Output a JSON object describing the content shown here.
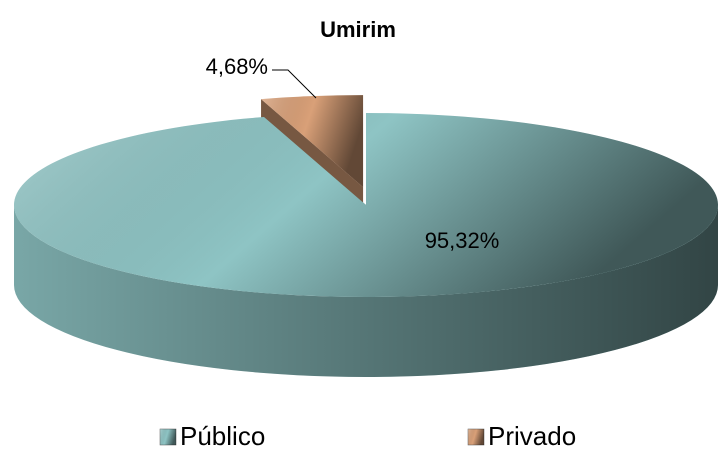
{
  "chart_data": {
    "type": "pie",
    "title": "Umirim",
    "categories": [
      "Público",
      "Privado"
    ],
    "values": [
      95.32,
      4.68
    ],
    "value_labels": [
      "95,32%",
      "4,68%"
    ],
    "colors": [
      "#8ec4c4",
      "#d9a078"
    ]
  }
}
